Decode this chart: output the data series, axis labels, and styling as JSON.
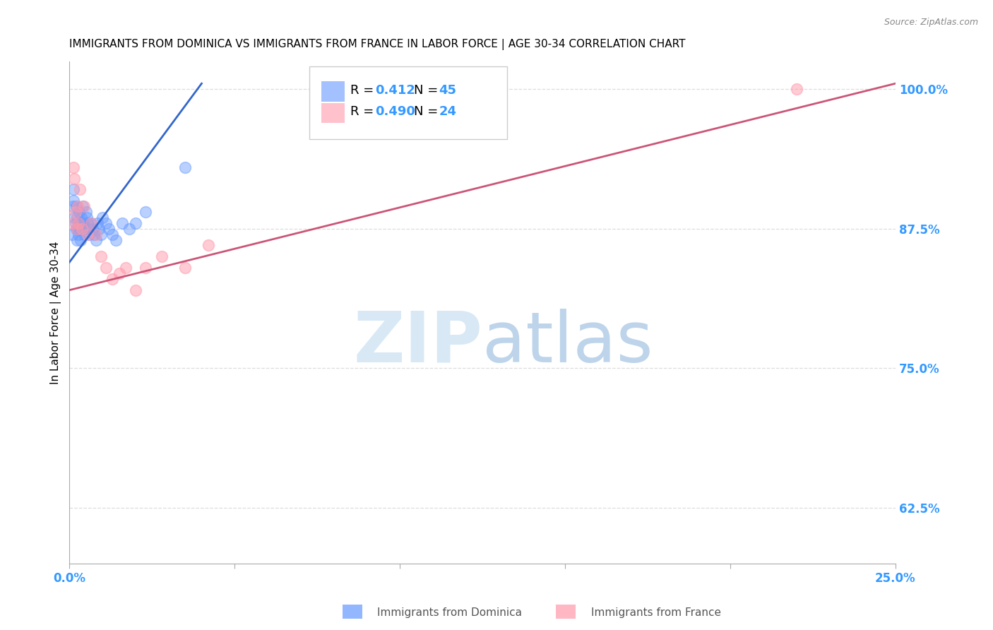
{
  "title": "IMMIGRANTS FROM DOMINICA VS IMMIGRANTS FROM FRANCE IN LABOR FORCE | AGE 30-34 CORRELATION CHART",
  "source": "Source: ZipAtlas.com",
  "ylabel": "In Labor Force | Age 30-34",
  "xlim": [
    0.0,
    0.25
  ],
  "ylim": [
    0.575,
    1.025
  ],
  "yticks": [
    0.625,
    0.75,
    0.875,
    1.0
  ],
  "ytick_labels": [
    "62.5%",
    "75.0%",
    "87.5%",
    "100.0%"
  ],
  "xticks": [
    0.0,
    0.05,
    0.1,
    0.15,
    0.2,
    0.25
  ],
  "xtick_labels": [
    "0.0%",
    "",
    "",
    "",
    "",
    "25.0%"
  ],
  "dominica_color": "#6699ff",
  "france_color": "#ff99aa",
  "dominica_line_color": "#3366cc",
  "france_line_color": "#cc5577",
  "R_dominica": 0.412,
  "N_dominica": 45,
  "R_france": 0.49,
  "N_france": 24,
  "dominica_x": [
    0.0008,
    0.001,
    0.0012,
    0.0013,
    0.0015,
    0.0018,
    0.002,
    0.002,
    0.0022,
    0.0023,
    0.0025,
    0.0027,
    0.0028,
    0.003,
    0.0032,
    0.0033,
    0.0035,
    0.0036,
    0.0038,
    0.004,
    0.0042,
    0.0044,
    0.0046,
    0.005,
    0.0052,
    0.0055,
    0.0058,
    0.006,
    0.0065,
    0.007,
    0.0075,
    0.008,
    0.0085,
    0.009,
    0.0095,
    0.01,
    0.011,
    0.012,
    0.013,
    0.014,
    0.016,
    0.018,
    0.02,
    0.023,
    0.035
  ],
  "dominica_y": [
    0.87,
    0.895,
    0.91,
    0.9,
    0.885,
    0.88,
    0.875,
    0.895,
    0.885,
    0.865,
    0.875,
    0.88,
    0.87,
    0.89,
    0.875,
    0.865,
    0.875,
    0.885,
    0.88,
    0.895,
    0.88,
    0.87,
    0.875,
    0.89,
    0.885,
    0.88,
    0.875,
    0.87,
    0.88,
    0.875,
    0.87,
    0.865,
    0.88,
    0.875,
    0.87,
    0.885,
    0.88,
    0.875,
    0.87,
    0.865,
    0.88,
    0.875,
    0.88,
    0.89,
    0.93
  ],
  "france_x": [
    0.001,
    0.0012,
    0.0015,
    0.0018,
    0.0022,
    0.0025,
    0.0028,
    0.0032,
    0.0038,
    0.0045,
    0.0055,
    0.0065,
    0.008,
    0.0095,
    0.011,
    0.013,
    0.015,
    0.017,
    0.02,
    0.023,
    0.028,
    0.035,
    0.042,
    0.22
  ],
  "france_y": [
    0.88,
    0.93,
    0.92,
    0.89,
    0.875,
    0.895,
    0.88,
    0.91,
    0.875,
    0.895,
    0.87,
    0.88,
    0.87,
    0.85,
    0.84,
    0.83,
    0.835,
    0.84,
    0.82,
    0.84,
    0.85,
    0.84,
    0.86,
    1.0
  ],
  "dom_line_x0": 0.0,
  "dom_line_y0": 0.845,
  "dom_line_x1": 0.04,
  "dom_line_y1": 1.005,
  "fra_line_x0": 0.0,
  "fra_line_y0": 0.82,
  "fra_line_x1": 0.25,
  "fra_line_y1": 1.005,
  "title_fontsize": 11,
  "tick_color": "#3399ff",
  "legend_fontsize": 13
}
